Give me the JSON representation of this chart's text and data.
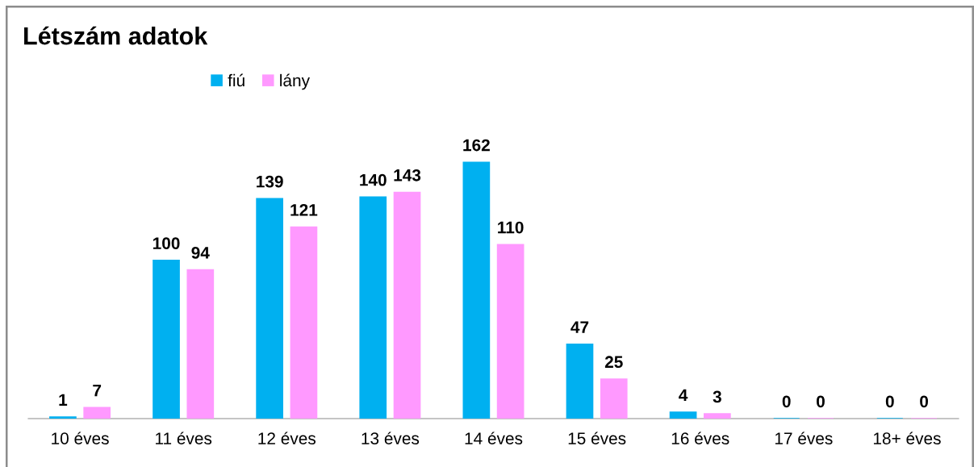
{
  "chart_data": {
    "type": "bar",
    "title": "Létszám adatok",
    "categories": [
      "10 éves",
      "11 éves",
      "12 éves",
      "13 éves",
      "14 éves",
      "15 éves",
      "16 éves",
      "17 éves",
      "18+ éves"
    ],
    "series": [
      {
        "name": "fiú",
        "color": "#00b0f0",
        "values": [
          1,
          100,
          139,
          140,
          162,
          47,
          4,
          0,
          0
        ]
      },
      {
        "name": "lány",
        "color": "#ff99ff",
        "values": [
          7,
          94,
          121,
          143,
          110,
          25,
          3,
          0,
          0
        ]
      }
    ],
    "data_labels": true,
    "legend": "top left"
  }
}
